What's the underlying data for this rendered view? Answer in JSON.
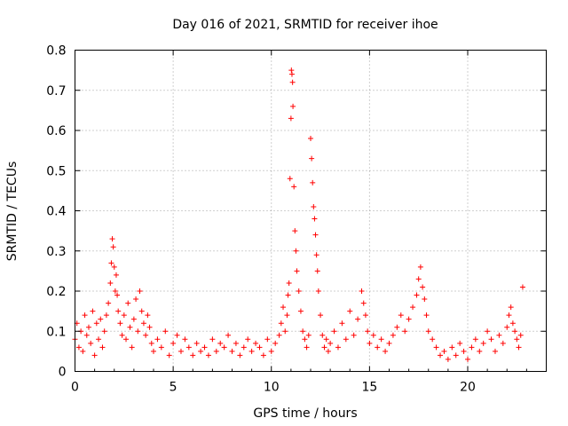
{
  "chart_data": {
    "type": "scatter",
    "title": "Day 016 of 2021, SRMTID for receiver ihoe",
    "xlabel": "GPS time / hours",
    "ylabel": "SRMTID / TECUs",
    "xlim": [
      0,
      24
    ],
    "ylim": [
      0,
      0.8
    ],
    "xticks": [
      "0",
      "5",
      "10",
      "15",
      "20"
    ],
    "yticks": [
      "0",
      "0.1",
      "0.2",
      "0.3",
      "0.4",
      "0.5",
      "0.6",
      "0.7",
      "0.8"
    ],
    "grid": true,
    "marker": "+",
    "series": [
      {
        "name": "SRMTID",
        "color": "#ff0000",
        "x": [
          0.0,
          0.1,
          0.2,
          0.3,
          0.4,
          0.5,
          0.6,
          0.7,
          0.8,
          0.9,
          1.0,
          1.1,
          1.2,
          1.3,
          1.4,
          1.5,
          1.6,
          1.7,
          1.8,
          1.85,
          1.9,
          1.95,
          2.0,
          2.05,
          2.1,
          2.15,
          2.2,
          2.3,
          2.4,
          2.5,
          2.6,
          2.7,
          2.8,
          2.9,
          3.0,
          3.1,
          3.2,
          3.3,
          3.4,
          3.5,
          3.6,
          3.7,
          3.8,
          3.9,
          4.0,
          4.2,
          4.4,
          4.6,
          4.8,
          5.0,
          5.2,
          5.4,
          5.6,
          5.8,
          6.0,
          6.2,
          6.4,
          6.6,
          6.8,
          7.0,
          7.2,
          7.4,
          7.6,
          7.8,
          8.0,
          8.2,
          8.4,
          8.6,
          8.8,
          9.0,
          9.2,
          9.4,
          9.6,
          9.8,
          10.0,
          10.2,
          10.4,
          10.5,
          10.6,
          10.7,
          10.8,
          10.85,
          10.9,
          10.95,
          11.0,
          11.02,
          11.05,
          11.08,
          11.1,
          11.15,
          11.2,
          11.25,
          11.3,
          11.4,
          11.5,
          11.6,
          11.7,
          11.8,
          11.9,
          12.0,
          12.05,
          12.1,
          12.15,
          12.2,
          12.25,
          12.3,
          12.35,
          12.4,
          12.5,
          12.6,
          12.7,
          12.8,
          12.9,
          13.0,
          13.2,
          13.4,
          13.6,
          13.8,
          14.0,
          14.2,
          14.4,
          14.6,
          14.7,
          14.8,
          14.9,
          15.0,
          15.2,
          15.4,
          15.6,
          15.8,
          16.0,
          16.2,
          16.4,
          16.6,
          16.8,
          17.0,
          17.2,
          17.4,
          17.5,
          17.6,
          17.7,
          17.8,
          17.9,
          18.0,
          18.2,
          18.4,
          18.6,
          18.8,
          19.0,
          19.2,
          19.4,
          19.6,
          19.8,
          20.0,
          20.2,
          20.4,
          20.6,
          20.8,
          21.0,
          21.2,
          21.4,
          21.6,
          21.8,
          22.0,
          22.1,
          22.2,
          22.3,
          22.4,
          22.5,
          22.6,
          22.7,
          22.8
        ],
        "y": [
          0.08,
          0.12,
          0.06,
          0.1,
          0.05,
          0.14,
          0.09,
          0.11,
          0.07,
          0.15,
          0.04,
          0.12,
          0.08,
          0.13,
          0.06,
          0.1,
          0.14,
          0.17,
          0.22,
          0.27,
          0.33,
          0.31,
          0.26,
          0.2,
          0.24,
          0.19,
          0.15,
          0.12,
          0.09,
          0.14,
          0.08,
          0.17,
          0.11,
          0.06,
          0.13,
          0.18,
          0.1,
          0.2,
          0.15,
          0.12,
          0.09,
          0.14,
          0.11,
          0.07,
          0.05,
          0.08,
          0.06,
          0.1,
          0.04,
          0.07,
          0.09,
          0.05,
          0.08,
          0.06,
          0.04,
          0.07,
          0.05,
          0.06,
          0.04,
          0.08,
          0.05,
          0.07,
          0.06,
          0.09,
          0.05,
          0.07,
          0.04,
          0.06,
          0.08,
          0.05,
          0.07,
          0.06,
          0.04,
          0.08,
          0.05,
          0.07,
          0.09,
          0.12,
          0.16,
          0.1,
          0.14,
          0.19,
          0.22,
          0.48,
          0.63,
          0.75,
          0.74,
          0.72,
          0.66,
          0.46,
          0.35,
          0.3,
          0.25,
          0.2,
          0.15,
          0.1,
          0.08,
          0.06,
          0.09,
          0.58,
          0.53,
          0.47,
          0.41,
          0.38,
          0.34,
          0.29,
          0.25,
          0.2,
          0.14,
          0.09,
          0.06,
          0.08,
          0.05,
          0.07,
          0.1,
          0.06,
          0.12,
          0.08,
          0.15,
          0.09,
          0.13,
          0.2,
          0.17,
          0.14,
          0.1,
          0.07,
          0.09,
          0.06,
          0.08,
          0.05,
          0.07,
          0.09,
          0.11,
          0.14,
          0.1,
          0.13,
          0.16,
          0.19,
          0.23,
          0.26,
          0.21,
          0.18,
          0.14,
          0.1,
          0.08,
          0.06,
          0.04,
          0.05,
          0.03,
          0.06,
          0.04,
          0.07,
          0.05,
          0.03,
          0.06,
          0.08,
          0.05,
          0.07,
          0.1,
          0.08,
          0.05,
          0.09,
          0.07,
          0.11,
          0.14,
          0.16,
          0.12,
          0.1,
          0.08,
          0.06,
          0.09,
          0.21
        ]
      }
    ]
  }
}
